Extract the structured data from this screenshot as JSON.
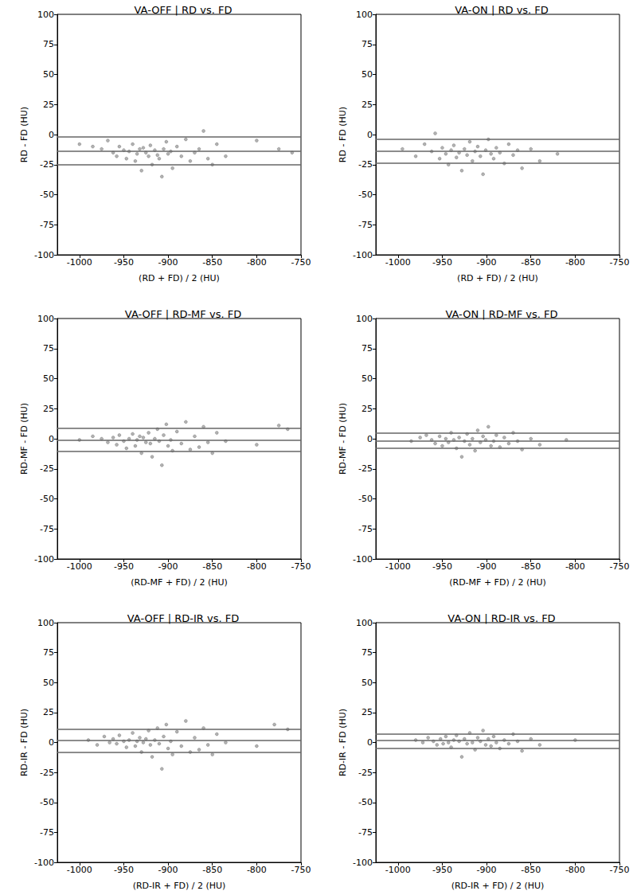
{
  "chart_data": [
    {
      "type": "scatter",
      "title": "VA-OFF | RD vs. FD",
      "x_label": "(RD + FD) / 2 (HU)",
      "y_label": "RD - FD (HU)",
      "xlim": [
        -1025,
        -750
      ],
      "xticks": [
        -1000,
        -950,
        -900,
        -850,
        -800,
        -750
      ],
      "ylim": [
        -100,
        100
      ],
      "yticks": [
        -100,
        -75,
        -50,
        -25,
        0,
        25,
        50,
        75,
        100
      ],
      "grid": false,
      "color": "#000000",
      "reference_lines": [
        -1.5,
        -13.5,
        -25
      ],
      "x": [
        -1000,
        -985,
        -975,
        -968,
        -962,
        -958,
        -955,
        -950,
        -947,
        -944,
        -940,
        -937,
        -935,
        -932,
        -930,
        -928,
        -925,
        -922,
        -920,
        -918,
        -915,
        -912,
        -910,
        -907,
        -905,
        -902,
        -900,
        -897,
        -895,
        -890,
        -885,
        -880,
        -875,
        -870,
        -865,
        -860,
        -855,
        -850,
        -845,
        -835,
        -800,
        -775,
        -760
      ],
      "values": [
        -8,
        -10,
        -12,
        -5,
        -15,
        -18,
        -10,
        -13,
        -20,
        -14,
        -8,
        -22,
        -16,
        -12,
        -30,
        -11,
        -15,
        -18,
        -9,
        -25,
        -13,
        -17,
        -20,
        -35,
        -12,
        -6,
        -16,
        -14,
        -28,
        -10,
        -18,
        -4,
        -22,
        -15,
        -12,
        3,
        -20,
        -25,
        -8,
        -18,
        -5,
        -12,
        -15
      ]
    },
    {
      "type": "scatter",
      "title": "VA-ON | RD vs. FD",
      "x_label": "(RD + FD) / 2 (HU)",
      "y_label": "RD - FD (HU)",
      "xlim": [
        -1025,
        -750
      ],
      "xticks": [
        -1000,
        -950,
        -900,
        -850,
        -800,
        -750
      ],
      "ylim": [
        -100,
        100
      ],
      "yticks": [
        -100,
        -75,
        -50,
        -25,
        0,
        25,
        50,
        75,
        100
      ],
      "grid": false,
      "color": "#000000",
      "reference_lines": [
        -4,
        -14,
        -24
      ],
      "x": [
        -995,
        -980,
        -970,
        -962,
        -958,
        -953,
        -950,
        -946,
        -943,
        -940,
        -937,
        -934,
        -931,
        -928,
        -925,
        -922,
        -919,
        -916,
        -913,
        -910,
        -907,
        -904,
        -901,
        -898,
        -895,
        -892,
        -889,
        -885,
        -880,
        -875,
        -870,
        -865,
        -860,
        -850,
        -840,
        -820
      ],
      "values": [
        -12,
        -18,
        -8,
        -14,
        1,
        -20,
        -11,
        -16,
        -25,
        -13,
        -9,
        -19,
        -15,
        -30,
        -12,
        -17,
        -6,
        -22,
        -14,
        -10,
        -18,
        -33,
        -13,
        -4,
        -16,
        -20,
        -11,
        -15,
        -24,
        -8,
        -17,
        -13,
        -28,
        -12,
        -22,
        -16
      ]
    },
    {
      "type": "scatter",
      "title": "VA-OFF | RD-MF vs. FD",
      "x_label": "(RD-MF + FD) / 2 (HU)",
      "y_label": "RD-MF - FD (HU)",
      "xlim": [
        -1025,
        -750
      ],
      "xticks": [
        -1000,
        -950,
        -900,
        -850,
        -800,
        -750
      ],
      "ylim": [
        -100,
        100
      ],
      "yticks": [
        -100,
        -75,
        -50,
        -25,
        0,
        25,
        50,
        75,
        100
      ],
      "grid": false,
      "color": "#000000",
      "reference_lines": [
        8.5,
        -1,
        -10.5
      ],
      "x": [
        -1000,
        -985,
        -975,
        -968,
        -962,
        -958,
        -955,
        -950,
        -947,
        -944,
        -940,
        -937,
        -935,
        -932,
        -930,
        -928,
        -925,
        -922,
        -920,
        -918,
        -915,
        -912,
        -910,
        -907,
        -905,
        -902,
        -900,
        -897,
        -895,
        -890,
        -885,
        -880,
        -875,
        -870,
        -865,
        -860,
        -855,
        -850,
        -845,
        -835,
        -800,
        -775,
        -765
      ],
      "values": [
        -1,
        2,
        0,
        -3,
        1,
        -5,
        3,
        -2,
        -8,
        0,
        4,
        -6,
        -1,
        2,
        -12,
        1,
        -3,
        5,
        -4,
        -15,
        0,
        8,
        -2,
        -22,
        3,
        12,
        -6,
        -1,
        -10,
        6,
        -4,
        14,
        -9,
        2,
        -7,
        10,
        -3,
        -12,
        5,
        -2,
        -5,
        11,
        8
      ]
    },
    {
      "type": "scatter",
      "title": "VA-ON | RD-MF vs. FD",
      "x_label": "(RD-MF + FD) / 2 (HU)",
      "y_label": "RD-MF - FD (HU)",
      "xlim": [
        -1025,
        -750
      ],
      "xticks": [
        -1000,
        -950,
        -900,
        -850,
        -800,
        -750
      ],
      "ylim": [
        -100,
        100
      ],
      "yticks": [
        -100,
        -75,
        -50,
        -25,
        0,
        25,
        50,
        75,
        100
      ],
      "grid": false,
      "color": "#000000",
      "reference_lines": [
        5,
        -1.5,
        -7.5
      ],
      "x": [
        -985,
        -975,
        -968,
        -962,
        -958,
        -953,
        -950,
        -946,
        -943,
        -940,
        -937,
        -934,
        -931,
        -928,
        -925,
        -922,
        -919,
        -916,
        -913,
        -910,
        -907,
        -904,
        -901,
        -898,
        -895,
        -892,
        -889,
        -885,
        -880,
        -875,
        -870,
        -865,
        -860,
        -850,
        -840,
        -810
      ],
      "values": [
        -2,
        1,
        3,
        -1,
        -4,
        2,
        -6,
        0,
        -3,
        5,
        -1,
        -8,
        1,
        -15,
        -2,
        4,
        -5,
        0,
        -10,
        7,
        -3,
        2,
        -1,
        10,
        -6,
        -2,
        3,
        -7,
        1,
        -4,
        5,
        -2,
        -9,
        0,
        -5,
        -1
      ]
    },
    {
      "type": "scatter",
      "title": "VA-OFF | RD-IR vs. FD",
      "x_label": "(RD-IR + FD) / 2 (HU)",
      "y_label": "RD-IR - FD (HU)",
      "xlim": [
        -1025,
        -750
      ],
      "xticks": [
        -1000,
        -950,
        -900,
        -850,
        -800,
        -750
      ],
      "ylim": [
        -100,
        100
      ],
      "yticks": [
        -100,
        -75,
        -50,
        -25,
        0,
        25,
        50,
        75,
        100
      ],
      "grid": false,
      "color": "#000000",
      "reference_lines": [
        11,
        1.5,
        -8
      ],
      "x": [
        -990,
        -980,
        -972,
        -966,
        -962,
        -958,
        -955,
        -950,
        -947,
        -944,
        -940,
        -937,
        -935,
        -932,
        -930,
        -928,
        -925,
        -922,
        -920,
        -918,
        -915,
        -912,
        -910,
        -907,
        -905,
        -902,
        -900,
        -897,
        -895,
        -890,
        -885,
        -880,
        -875,
        -870,
        -865,
        -860,
        -855,
        -850,
        -845,
        -835,
        -800,
        -780,
        -765
      ],
      "values": [
        2,
        -2,
        5,
        0,
        3,
        -1,
        6,
        1,
        -4,
        2,
        8,
        -3,
        1,
        4,
        -8,
        0,
        3,
        10,
        -2,
        -12,
        2,
        12,
        -1,
        -22,
        5,
        15,
        -5,
        1,
        -10,
        9,
        -3,
        18,
        -8,
        4,
        -6,
        12,
        -2,
        -10,
        7,
        0,
        -3,
        15,
        11
      ]
    },
    {
      "type": "scatter",
      "title": "VA-ON | RD-IR vs. FD",
      "x_label": "(RD-IR + FD) / 2 (HU)",
      "y_label": "RD-IR - FD (HU)",
      "xlim": [
        -1025,
        -750
      ],
      "xticks": [
        -1000,
        -950,
        -900,
        -850,
        -800,
        -750
      ],
      "ylim": [
        -100,
        100
      ],
      "yticks": [
        -100,
        -75,
        -50,
        -25,
        0,
        25,
        50,
        75,
        100
      ],
      "grid": false,
      "color": "#000000",
      "reference_lines": [
        7,
        1.5,
        -4.5
      ],
      "x": [
        -980,
        -972,
        -966,
        -960,
        -956,
        -952,
        -949,
        -946,
        -943,
        -940,
        -937,
        -934,
        -931,
        -928,
        -925,
        -922,
        -919,
        -916,
        -913,
        -910,
        -907,
        -904,
        -901,
        -898,
        -895,
        -892,
        -889,
        -885,
        -880,
        -875,
        -870,
        -865,
        -860,
        -850,
        -840,
        -800
      ],
      "values": [
        2,
        0,
        4,
        1,
        -2,
        3,
        -1,
        5,
        0,
        -4,
        2,
        6,
        1,
        -12,
        3,
        -1,
        8,
        0,
        -6,
        4,
        1,
        10,
        -2,
        3,
        -3,
        5,
        0,
        -5,
        2,
        -1,
        7,
        1,
        -7,
        3,
        -2,
        2
      ]
    }
  ]
}
